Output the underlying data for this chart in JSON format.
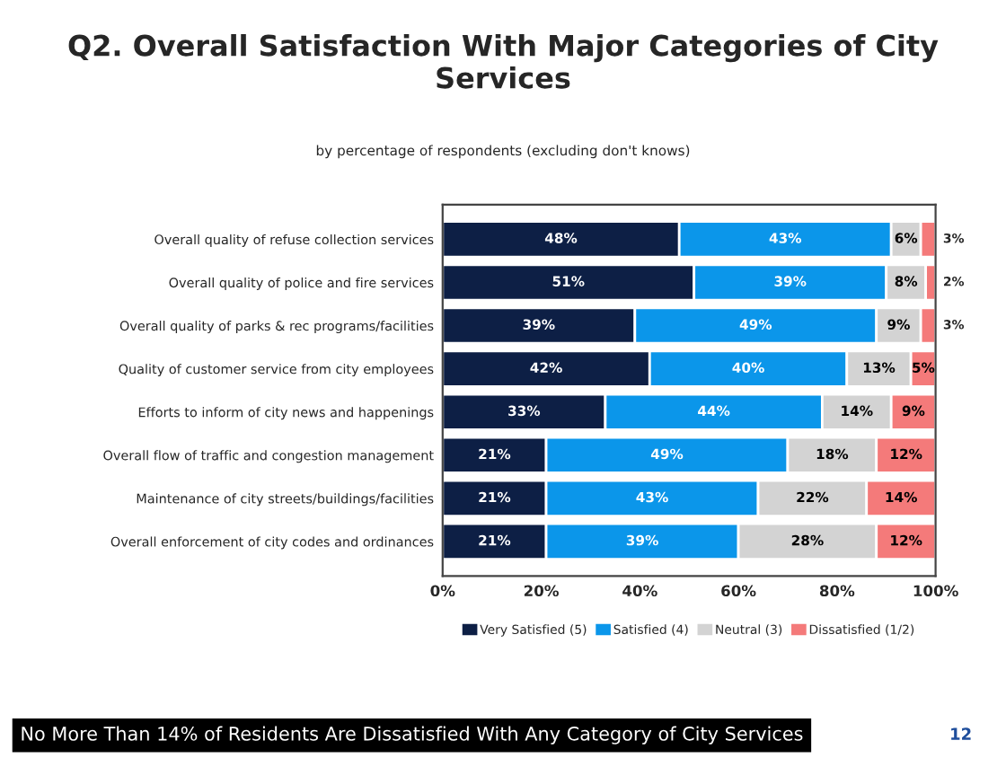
{
  "chart_data": {
    "type": "bar",
    "orientation": "horizontal",
    "stacked": true,
    "title": "Q2. Overall Satisfaction With Major Categories of City Services",
    "subtitle": "by percentage of respondents (excluding don't knows)",
    "categories": [
      "Overall quality of refuse collection services",
      "Overall quality of police and fire services",
      "Overall quality of parks & rec programs/facilities",
      "Quality of customer service from city employees",
      "Efforts to inform of city news and happenings",
      "Overall flow of traffic and congestion management",
      "Maintenance of city streets/buildings/facilities",
      "Overall enforcement of city codes and ordinances"
    ],
    "series": [
      {
        "name": "Very Satisfied (5)",
        "color": "#0d1f45",
        "values": [
          48,
          51,
          39,
          42,
          33,
          21,
          21,
          21
        ],
        "value_labels": [
          "48%",
          "51%",
          "39%",
          "42%",
          "33%",
          "21%",
          "21%",
          "21%"
        ]
      },
      {
        "name": "Satisfied (4)",
        "color": "#0b96ea",
        "values": [
          43,
          39,
          49,
          40,
          44,
          49,
          43,
          39
        ],
        "value_labels": [
          "43%",
          "39%",
          "49%",
          "40%",
          "44%",
          "49%",
          "43%",
          "39%"
        ]
      },
      {
        "name": "Neutral (3)",
        "color": "#d3d3d3",
        "values": [
          6,
          8,
          9,
          13,
          14,
          18,
          22,
          28
        ],
        "value_labels": [
          "6%",
          "8%",
          "9%",
          "13%",
          "14%",
          "18%",
          "22%",
          "28%"
        ]
      },
      {
        "name": "Dissatisfied (1/2)",
        "color": "#f47a7a",
        "values": [
          3,
          2,
          3,
          5,
          9,
          12,
          14,
          12
        ],
        "value_labels": [
          "3%",
          "2%",
          "3%",
          "5%",
          "9%",
          "12%",
          "14%",
          "12%"
        ]
      }
    ],
    "xlim": [
      0,
      100
    ],
    "xticks": [
      {
        "value": 0,
        "label": "0%"
      },
      {
        "value": 20,
        "label": "20%"
      },
      {
        "value": 40,
        "label": "40%"
      },
      {
        "value": 60,
        "label": "60%"
      },
      {
        "value": 80,
        "label": "80%"
      },
      {
        "value": 100,
        "label": "100%"
      }
    ],
    "legend": "bottom",
    "grid": false,
    "annotations": [
      "No More Than 14% of Residents Are Dissatisfied With Any Category of City Services",
      "12"
    ]
  }
}
